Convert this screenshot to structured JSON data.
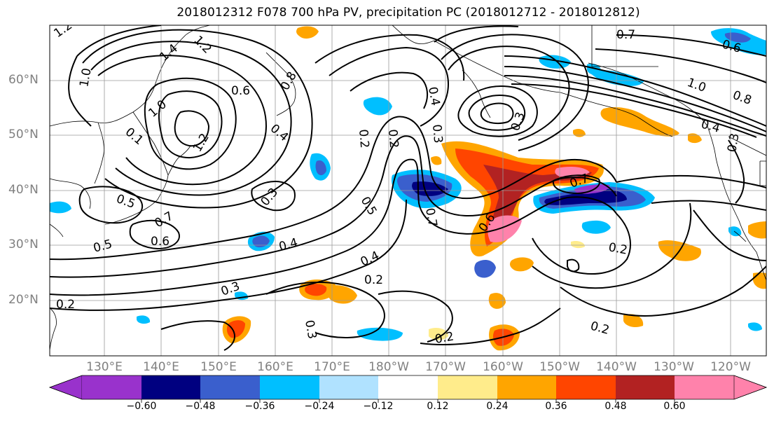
{
  "title": "2018012312 F078 700 hPa PV, precipitation PC (2018012712 - 2018012812)",
  "lat_labels": [
    "60°N",
    "50°N",
    "40°N",
    "30°N",
    "20°N"
  ],
  "lon_labels": [
    "130°E",
    "140°E",
    "150°E",
    "160°E",
    "170°E",
    "180°W",
    "170°W",
    "160°W",
    "150°W",
    "140°W",
    "130°W",
    "120°W"
  ],
  "contour_labels": [
    "1.2",
    "1.4",
    "1.2",
    "1.0",
    "0.6",
    "0.8",
    "1.0",
    "0.1",
    "1.2",
    "0.4",
    "0.3",
    "0.5",
    "0.7",
    "0.6",
    "0.5",
    "0.4",
    "0.3",
    "0.3",
    "0.5",
    "0.2",
    "0.4",
    "0.3",
    "0.2",
    "0.6",
    "0.7",
    "0.2",
    "0.2",
    "0.4",
    "0.2",
    "0.7",
    "0.6",
    "1.0",
    "0.8",
    "0.4",
    "0.3",
    "0.7",
    "0.3",
    "0.2",
    "0.2"
  ],
  "colorbar": {
    "ticks": [
      "−0.60",
      "−0.48",
      "−0.36",
      "−0.24",
      "−0.12",
      "0.12",
      "0.24",
      "0.36",
      "0.48",
      "0.60"
    ],
    "colors": [
      "#9932cc",
      "#000080",
      "#3a5fcd",
      "#00bfff",
      "#b0e2ff",
      "#ffffff",
      "#ffec8b",
      "#ffa500",
      "#ff4500",
      "#b22222",
      "#ff82ab"
    ]
  }
}
